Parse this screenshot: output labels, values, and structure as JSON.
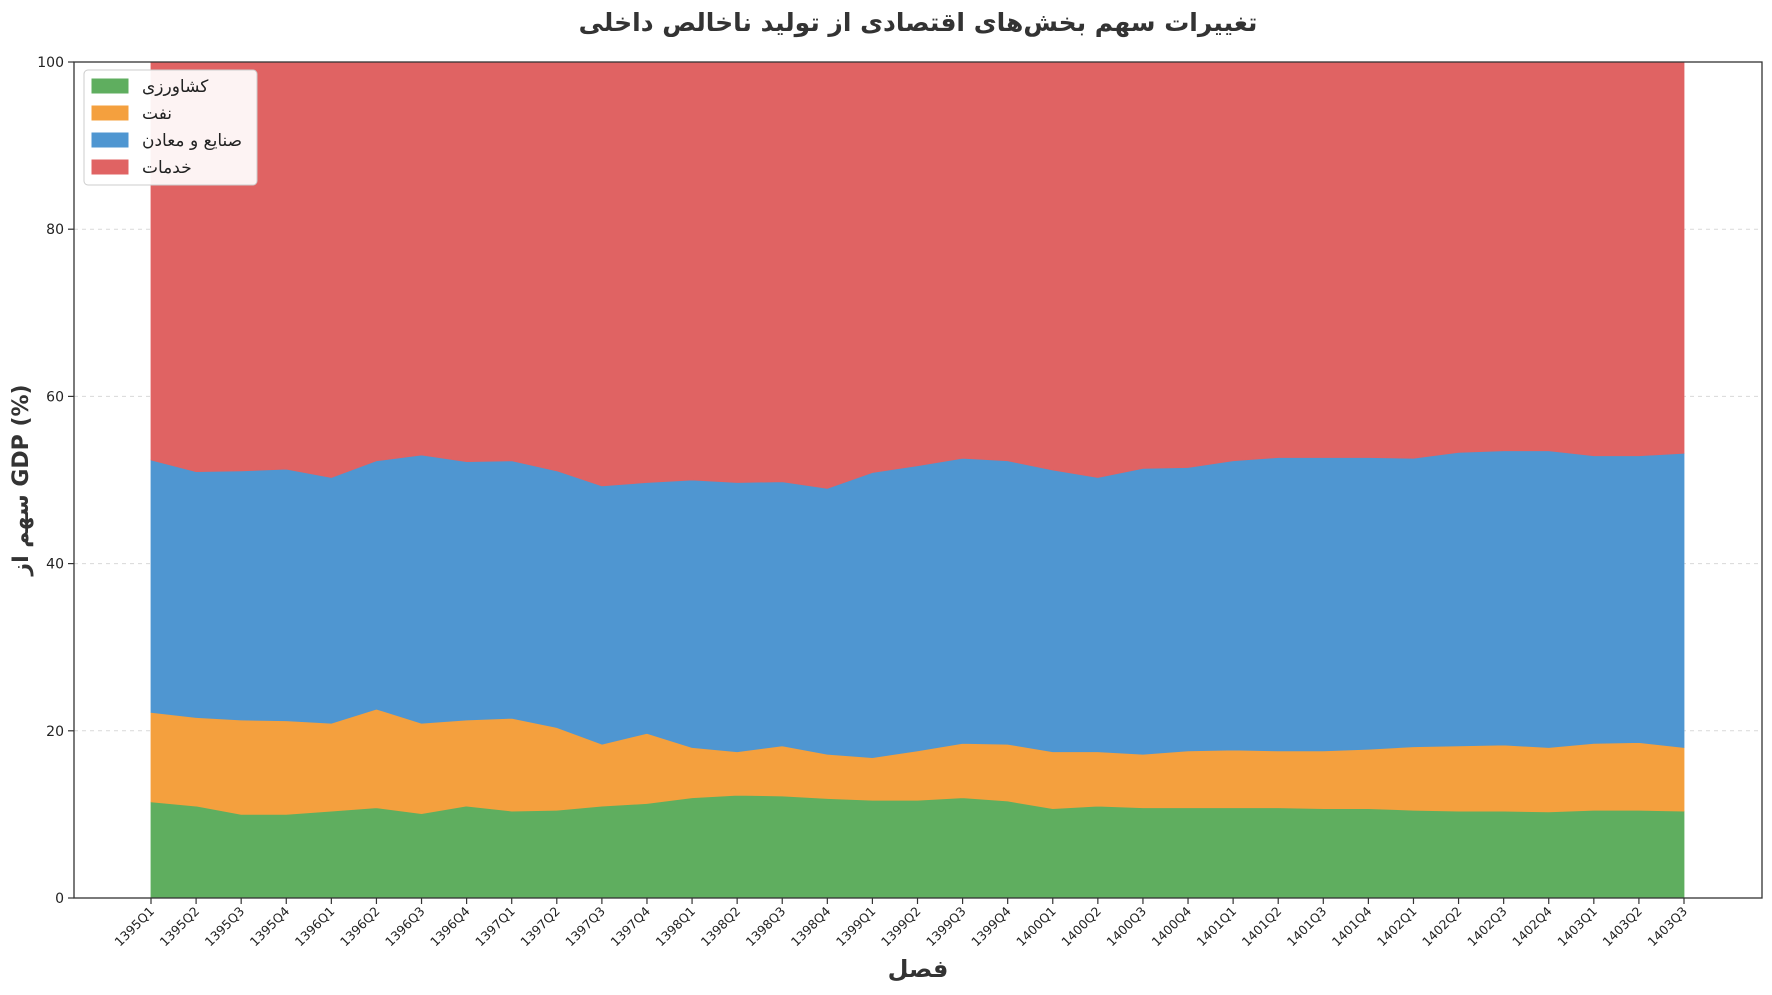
{
  "chart_data": {
    "type": "area",
    "stacked": true,
    "title": "تغییرات سهم بخش‌های اقتصادی از تولید ناخالص داخلی",
    "xlabel": "فصل",
    "ylabel": "سهم از GDP (%)",
    "ylim": [
      0,
      100
    ],
    "yticks": [
      0,
      20,
      40,
      60,
      80,
      100
    ],
    "grid": true,
    "legend_position": "top-left",
    "categories": [
      "1395Q1",
      "1395Q2",
      "1395Q3",
      "1395Q4",
      "1396Q1",
      "1396Q2",
      "1396Q3",
      "1396Q4",
      "1397Q1",
      "1397Q2",
      "1397Q3",
      "1397Q4",
      "1398Q1",
      "1398Q2",
      "1398Q3",
      "1398Q4",
      "1399Q1",
      "1399Q2",
      "1399Q3",
      "1399Q4",
      "1400Q1",
      "1400Q2",
      "1400Q3",
      "1400Q4",
      "1401Q1",
      "1401Q2",
      "1401Q3",
      "1401Q4",
      "1402Q1",
      "1402Q2",
      "1402Q3",
      "1402Q4",
      "1403Q1",
      "1403Q2",
      "1403Q3"
    ],
    "series": [
      {
        "name": "کشاورزی",
        "color": "#5fae5f",
        "values": [
          11.5,
          11.0,
          10.0,
          10.0,
          10.4,
          10.8,
          10.1,
          11.0,
          10.4,
          10.5,
          11.0,
          11.3,
          12.0,
          12.3,
          12.2,
          11.9,
          11.7,
          11.7,
          12.0,
          11.6,
          10.7,
          11.0,
          10.8,
          10.8,
          10.8,
          10.8,
          10.7,
          10.7,
          10.5,
          10.4,
          10.4,
          10.3,
          10.5,
          10.5,
          10.4
        ]
      },
      {
        "name": "نفت",
        "color": "#f4a03e",
        "values": [
          10.7,
          10.6,
          11.3,
          11.2,
          10.5,
          11.8,
          10.8,
          10.3,
          11.1,
          9.9,
          7.4,
          8.4,
          6.0,
          5.2,
          6.0,
          5.3,
          5.1,
          5.9,
          6.5,
          6.8,
          6.8,
          6.5,
          6.4,
          6.8,
          6.9,
          6.8,
          6.9,
          7.1,
          7.6,
          7.8,
          7.9,
          7.7,
          8.0,
          8.1,
          7.6
        ]
      },
      {
        "name": "صنایع و معادن",
        "color": "#4f96d1",
        "values": [
          30.2,
          29.4,
          29.8,
          30.1,
          29.4,
          29.7,
          32.1,
          30.9,
          30.8,
          30.7,
          30.9,
          30.0,
          32.0,
          32.2,
          31.6,
          31.8,
          34.1,
          34.1,
          34.1,
          33.9,
          33.7,
          32.8,
          34.2,
          33.9,
          34.6,
          35.1,
          35.1,
          34.9,
          34.5,
          35.1,
          35.2,
          35.5,
          34.4,
          34.3,
          35.2
        ]
      },
      {
        "name": "خدمات",
        "color": "#e06363",
        "values": [
          47.6,
          49.0,
          48.9,
          48.7,
          49.7,
          47.7,
          47.0,
          47.8,
          47.7,
          48.9,
          50.7,
          50.3,
          50.0,
          50.3,
          50.2,
          51.0,
          49.1,
          48.3,
          47.4,
          47.7,
          48.8,
          49.7,
          48.6,
          48.5,
          47.7,
          47.3,
          47.3,
          47.3,
          47.4,
          46.7,
          46.5,
          46.5,
          47.1,
          47.1,
          46.8
        ]
      }
    ]
  }
}
